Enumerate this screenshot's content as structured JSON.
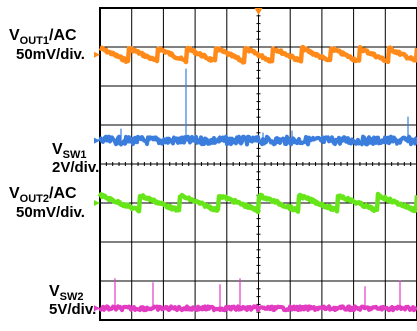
{
  "chart_data": {
    "type": "line",
    "title": "",
    "xlabel": "",
    "ylabel": "",
    "grid": true,
    "grid_divisions": {
      "x": 10,
      "y": 8
    },
    "series": [
      {
        "name": "VOUT1/AC",
        "color": "#ff8a1a",
        "scale": "50mV/div.",
        "shape": "sawtooth",
        "periods": 11,
        "level_div": 1.2,
        "pp_div": 0.35
      },
      {
        "name": "VSW1",
        "color": "#3b7ddd",
        "scale": "2V/div.",
        "shape": "switching-node",
        "level_div": 3.4,
        "pp_div": 0.1
      },
      {
        "name": "VOUT2/AC",
        "color": "#66e619",
        "scale": "50mV/div.",
        "shape": "sawtooth",
        "periods": 8,
        "level_div": 5.0,
        "pp_div": 0.4
      },
      {
        "name": "VSW2",
        "color": "#e23cc3",
        "scale": "5V/div.",
        "shape": "switching-node",
        "level_div": 7.7,
        "pp_div": 0.05
      }
    ],
    "labels": [
      {
        "main": "V",
        "sub": "OUT1",
        "tail": "/AC",
        "scale": "50mV/div."
      },
      {
        "main": "V",
        "sub": "SW1",
        "tail": "",
        "scale": "2V/div."
      },
      {
        "main": "V",
        "sub": "OUT2",
        "tail": "/AC",
        "scale": "50mV/div."
      },
      {
        "main": "V",
        "sub": "SW2",
        "tail": "",
        "scale": "5V/div."
      }
    ]
  }
}
